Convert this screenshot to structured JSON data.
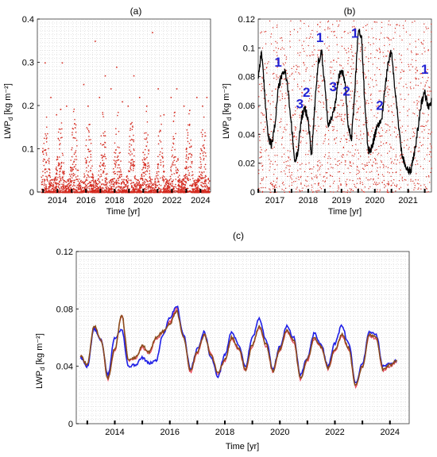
{
  "chart_data": [
    {
      "panel_label": "(a)",
      "type": "scatter",
      "xlabel": "Time [yr]",
      "ylabel": "LWP",
      "ylabel_sub": "d",
      "ylabel_unit": "[kg m⁻²]",
      "xlim": [
        2012.6,
        2024.7
      ],
      "ylim": [
        0,
        0.4
      ],
      "xticks": [
        2014,
        2016,
        2018,
        2020,
        2022,
        2024
      ],
      "yticks": [
        0,
        0.1,
        0.2,
        0.3,
        0.4
      ],
      "ytick_labels": [
        "0",
        "0.1",
        "0.2",
        "0.3",
        "0.4"
      ],
      "grid": true,
      "series": [
        {
          "color": "#d42a1f",
          "points": [
            [
              2013.1,
              0.3
            ],
            [
              2013.5,
              0.22
            ],
            [
              2013.9,
              0.18
            ],
            [
              2014.3,
              0.3
            ],
            [
              2014.6,
              0.2
            ],
            [
              2015.2,
              0.15
            ],
            [
              2015.8,
              0.25
            ],
            [
              2016.1,
              0.2
            ],
            [
              2016.6,
              0.35
            ],
            [
              2016.9,
              0.22
            ],
            [
              2017.3,
              0.27
            ],
            [
              2017.7,
              0.24
            ],
            [
              2018.1,
              0.29
            ],
            [
              2018.5,
              0.21
            ],
            [
              2018.9,
              0.2
            ],
            [
              2019.3,
              0.27
            ],
            [
              2019.7,
              0.22
            ],
            [
              2020.2,
              0.2
            ],
            [
              2020.6,
              0.37
            ],
            [
              2021.0,
              0.24
            ],
            [
              2021.4,
              0.18
            ],
            [
              2021.9,
              0.22
            ],
            [
              2022.3,
              0.24
            ],
            [
              2022.8,
              0.2
            ],
            [
              2023.2,
              0.19
            ],
            [
              2023.7,
              0.22
            ],
            [
              2024.1,
              0.2
            ],
            [
              2024.4,
              0.22
            ]
          ]
        }
      ]
    },
    {
      "panel_label": "(b)",
      "type": "scatter",
      "xlabel": "Time [yr]",
      "ylabel": "LWP",
      "ylabel_sub": "d",
      "ylabel_unit": "[kg m⁻²]",
      "xlim": [
        2016.5,
        2021.7
      ],
      "ylim": [
        0,
        0.12
      ],
      "xticks": [
        2017,
        2018,
        2019,
        2020,
        2021
      ],
      "yticks": [
        0,
        0.02,
        0.04,
        0.06,
        0.08,
        0.1,
        0.12
      ],
      "ytick_labels": [
        "0",
        "0.02",
        "0.04",
        "0.06",
        "0.08",
        "0.1",
        "0.12"
      ],
      "grid": true,
      "annotations": [
        {
          "text": "1",
          "x": 2017.1,
          "y": 0.087
        },
        {
          "text": "3",
          "x": 2017.75,
          "y": 0.058
        },
        {
          "text": "2",
          "x": 2017.95,
          "y": 0.066
        },
        {
          "text": "1",
          "x": 2018.35,
          "y": 0.104
        },
        {
          "text": "3",
          "x": 2018.75,
          "y": 0.07
        },
        {
          "text": "2",
          "x": 2019.15,
          "y": 0.067
        },
        {
          "text": "1",
          "x": 2019.4,
          "y": 0.107
        },
        {
          "text": "2",
          "x": 2020.15,
          "y": 0.057
        },
        {
          "text": "1",
          "x": 2021.5,
          "y": 0.082
        }
      ],
      "series": [
        {
          "name": "",
          "color": "#000000",
          "x": [
            2016.5,
            2016.6,
            2016.7,
            2016.8,
            2016.9,
            2017.0,
            2017.1,
            2017.2,
            2017.3,
            2017.4,
            2017.5,
            2017.6,
            2017.7,
            2017.8,
            2017.9,
            2018.0,
            2018.1,
            2018.2,
            2018.3,
            2018.4,
            2018.5,
            2018.6,
            2018.7,
            2018.8,
            2018.9,
            2019.0,
            2019.1,
            2019.2,
            2019.3,
            2019.4,
            2019.5,
            2019.6,
            2019.7,
            2019.8,
            2019.9,
            2020.0,
            2020.1,
            2020.2,
            2020.3,
            2020.4,
            2020.5,
            2020.6,
            2020.7,
            2020.8,
            2020.9,
            2021.0,
            2021.1,
            2021.2,
            2021.3,
            2021.4,
            2021.5,
            2021.6,
            2021.7
          ],
          "y": [
            0.08,
            0.098,
            0.066,
            0.038,
            0.032,
            0.046,
            0.072,
            0.08,
            0.085,
            0.07,
            0.045,
            0.02,
            0.03,
            0.052,
            0.058,
            0.05,
            0.025,
            0.06,
            0.09,
            0.098,
            0.074,
            0.046,
            0.052,
            0.058,
            0.078,
            0.086,
            0.078,
            0.046,
            0.036,
            0.07,
            0.112,
            0.108,
            0.062,
            0.028,
            0.03,
            0.04,
            0.046,
            0.05,
            0.07,
            0.09,
            0.098,
            0.072,
            0.05,
            0.028,
            0.02,
            0.014,
            0.016,
            0.03,
            0.045,
            0.062,
            0.07,
            0.058,
            0.063
          ]
        }
      ]
    },
    {
      "panel_label": "(c)",
      "type": "line",
      "xlabel": "Time [yr]",
      "ylabel": "LWP",
      "ylabel_sub": "d",
      "ylabel_unit": "[kg m⁻²]",
      "xlim": [
        2012.6,
        2024.7
      ],
      "ylim": [
        0,
        0.12
      ],
      "xticks": [
        2014,
        2016,
        2018,
        2020,
        2022,
        2024
      ],
      "yticks": [
        0,
        0.04,
        0.08,
        0.12
      ],
      "ytick_labels": [
        "0",
        "0.04",
        "0.08",
        "0.12"
      ],
      "grid": true,
      "x": [
        2012.75,
        2013.0,
        2013.25,
        2013.5,
        2013.75,
        2014.0,
        2014.25,
        2014.5,
        2014.75,
        2015.0,
        2015.25,
        2015.5,
        2015.75,
        2016.0,
        2016.25,
        2016.5,
        2016.75,
        2017.0,
        2017.25,
        2017.5,
        2017.75,
        2018.0,
        2018.25,
        2018.5,
        2018.75,
        2019.0,
        2019.25,
        2019.5,
        2019.75,
        2020.0,
        2020.25,
        2020.5,
        2020.75,
        2021.0,
        2021.25,
        2021.5,
        2021.75,
        2022.0,
        2022.25,
        2022.5,
        2022.75,
        2023.0,
        2023.25,
        2023.5,
        2023.75,
        2024.0,
        2024.25
      ],
      "series": [
        {
          "name": "",
          "color": "#1f1fe6",
          "values": [
            0.046,
            0.04,
            0.066,
            0.058,
            0.034,
            0.06,
            0.066,
            0.04,
            0.041,
            0.046,
            0.042,
            0.044,
            0.062,
            0.074,
            0.082,
            0.062,
            0.038,
            0.052,
            0.064,
            0.046,
            0.033,
            0.048,
            0.064,
            0.055,
            0.04,
            0.06,
            0.073,
            0.058,
            0.038,
            0.054,
            0.068,
            0.06,
            0.034,
            0.046,
            0.063,
            0.055,
            0.04,
            0.056,
            0.068,
            0.056,
            0.028,
            0.042,
            0.064,
            0.062,
            0.04,
            0.042,
            0.044
          ]
        },
        {
          "name": "",
          "color": "#8a4b1c",
          "values": [
            0.047,
            0.041,
            0.068,
            0.058,
            0.032,
            0.052,
            0.076,
            0.045,
            0.046,
            0.054,
            0.05,
            0.06,
            0.064,
            0.07,
            0.078,
            0.06,
            0.037,
            0.05,
            0.062,
            0.048,
            0.035,
            0.045,
            0.06,
            0.053,
            0.038,
            0.055,
            0.068,
            0.055,
            0.037,
            0.052,
            0.065,
            0.058,
            0.032,
            0.045,
            0.06,
            0.054,
            0.039,
            0.052,
            0.062,
            0.053,
            0.027,
            0.04,
            0.062,
            0.06,
            0.038,
            0.041,
            0.044
          ]
        },
        {
          "name": "",
          "color": "#e8475a",
          "values": [
            0.047,
            0.04,
            0.067,
            0.058,
            0.031,
            0.051,
            0.075,
            0.044,
            0.045,
            0.053,
            0.049,
            0.059,
            0.063,
            0.071,
            0.08,
            0.061,
            0.036,
            0.049,
            0.062,
            0.049,
            0.034,
            0.044,
            0.059,
            0.052,
            0.037,
            0.054,
            0.067,
            0.054,
            0.036,
            0.051,
            0.064,
            0.057,
            0.031,
            0.044,
            0.059,
            0.053,
            0.038,
            0.051,
            0.061,
            0.052,
            0.026,
            0.04,
            0.061,
            0.059,
            0.037,
            0.04,
            0.043
          ]
        }
      ]
    }
  ]
}
